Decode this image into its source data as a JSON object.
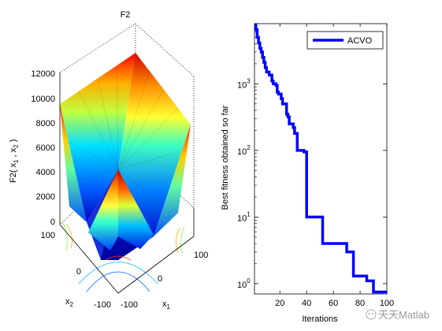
{
  "figure": {
    "left_panel": {
      "title": "F2",
      "zlabel": "F2( x",
      "zlabel_sub1": "1",
      "zlabel_mid": " , x",
      "zlabel_sub2": "2",
      "zlabel_end": " )",
      "xlabel": "x",
      "xlabel_sub": "1",
      "ylabel": "x",
      "ylabel_sub": "2",
      "z_ticks": [
        "12000",
        "10000",
        "8000",
        "6000",
        "4000",
        "2000",
        "0"
      ],
      "x_ticks": [
        "-100",
        "0",
        "100"
      ],
      "y_ticks": [
        "100",
        "0",
        "-100"
      ],
      "colormap": [
        "#00008f",
        "#0000ff",
        "#0080ff",
        "#00ffff",
        "#80ff80",
        "#ffff00",
        "#ff8000",
        "#ff0000",
        "#800000"
      ]
    },
    "right_panel": {
      "xlabel": "Iterations",
      "ylabel": "Best fitness obtained so far",
      "x_ticks": [
        "20",
        "40",
        "60",
        "80",
        "100"
      ],
      "y_ticks": [
        {
          "base": "10",
          "exp": "3"
        },
        {
          "base": "10",
          "exp": "2"
        },
        {
          "base": "10",
          "exp": "1"
        },
        {
          "base": "10",
          "exp": "0"
        }
      ],
      "line_color": "#0000ff",
      "legend_label": "ACVO"
    },
    "watermark": "天天Matlab"
  },
  "chart_data": [
    {
      "type": "surface",
      "title": "F2",
      "xlabel": "x1",
      "ylabel": "x2",
      "zlabel": "F2( x1 , x2 )",
      "xlim": [
        -100,
        100
      ],
      "ylim": [
        -100,
        100
      ],
      "zlim": [
        0,
        12000
      ],
      "z_ticks": [
        0,
        2000,
        4000,
        6000,
        8000,
        10000,
        12000
      ],
      "peak_z": 10500
    },
    {
      "type": "line",
      "title": "",
      "xlabel": "Iterations",
      "ylabel": "Best fitness obtained so far",
      "yscale": "log",
      "xlim": [
        1,
        100
      ],
      "ylim": [
        0.7,
        8000
      ],
      "legend_position": "top-right",
      "series": [
        {
          "name": "ACVO",
          "color": "#0000ff",
          "x": [
            1,
            2,
            3,
            4,
            5,
            6,
            7,
            8,
            9,
            10,
            12,
            14,
            15,
            17,
            18,
            19,
            21,
            22,
            24,
            25,
            26,
            27,
            29,
            30,
            31,
            33,
            35,
            36,
            38,
            40,
            42,
            45,
            48,
            52,
            55,
            60,
            65,
            70,
            74,
            75,
            80,
            85,
            88,
            90,
            95,
            100
          ],
          "y": [
            8000,
            6500,
            5000,
            4100,
            3400,
            3000,
            2500,
            2100,
            1750,
            1500,
            1350,
            1100,
            1000,
            950,
            750,
            700,
            600,
            500,
            500,
            350,
            320,
            250,
            250,
            220,
            180,
            100,
            100,
            100,
            95,
            10,
            10,
            10,
            10,
            4,
            4,
            4,
            4,
            3,
            3,
            1.3,
            1.3,
            1.1,
            1.1,
            0.75,
            0.75,
            0.75
          ]
        }
      ]
    }
  ]
}
